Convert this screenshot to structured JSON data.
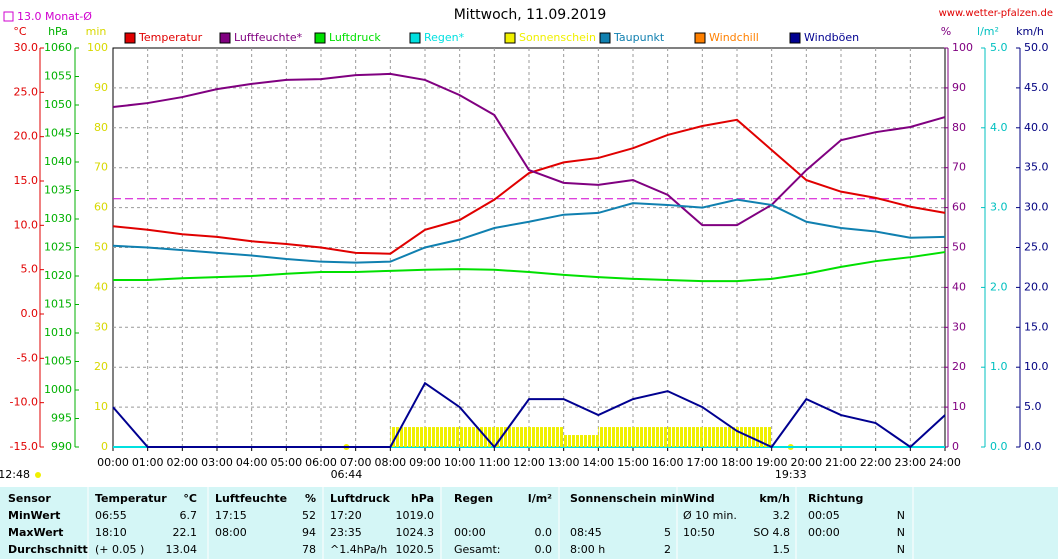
{
  "chart_data": {
    "type": "line",
    "title": "Mittwoch, 11.09.2019",
    "source": "www.wetter-pfalzen.de",
    "monthly_avg": {
      "label": "13.0 Monat-Ø",
      "value": 13.0,
      "color": "#d000d0"
    },
    "day_length": "12:48",
    "sunrise": "06:44",
    "sunset": "19:33",
    "grid": true,
    "x": [
      "00:00",
      "01:00",
      "02:00",
      "03:00",
      "04:00",
      "05:00",
      "06:00",
      "07:00",
      "08:00",
      "09:00",
      "10:00",
      "11:00",
      "12:00",
      "13:00",
      "14:00",
      "15:00",
      "16:00",
      "17:00",
      "18:00",
      "19:00",
      "20:00",
      "21:00",
      "22:00",
      "23:00",
      "24:00"
    ],
    "axes": [
      {
        "unit": "°C",
        "color": "#e00000",
        "lim": [
          -15,
          30
        ],
        "ticks": [
          {
            "value": -15,
            "label": "-15.0"
          },
          {
            "value": -10,
            "label": "-10.0"
          },
          {
            "value": -5,
            "label": "-5.0"
          },
          {
            "value": 0,
            "label": "0.0"
          },
          {
            "value": 5,
            "label": "5.0"
          },
          {
            "value": 10,
            "label": "10.0"
          },
          {
            "value": 15,
            "label": "15.0"
          },
          {
            "value": 20,
            "label": "20.0"
          },
          {
            "value": 25,
            "label": "25.0"
          },
          {
            "value": 30,
            "label": "30.0"
          }
        ]
      },
      {
        "unit": "hPa",
        "color": "#00b000",
        "lim": [
          990,
          1060
        ],
        "ticks": [
          990,
          995,
          1000,
          1005,
          1010,
          1015,
          1020,
          1025,
          1030,
          1035,
          1040,
          1045,
          1050,
          1055,
          1060
        ]
      },
      {
        "unit": "min",
        "color": "#d8d800",
        "lim": [
          0,
          100
        ],
        "ticks": [
          0,
          10,
          20,
          30,
          40,
          50,
          60,
          70,
          80,
          90,
          100
        ]
      },
      {
        "unit": "%",
        "color": "#800080",
        "lim": [
          0,
          100
        ],
        "ticks": [
          0,
          10,
          20,
          30,
          40,
          50,
          60,
          70,
          80,
          90,
          100
        ]
      },
      {
        "unit": "l/m²",
        "color": "#00c0c0",
        "lim": [
          0,
          5
        ],
        "ticks": [
          {
            "value": 0,
            "label": "0.0"
          },
          {
            "value": 1,
            "label": "1.0"
          },
          {
            "value": 2,
            "label": "2.0"
          },
          {
            "value": 3,
            "label": "3.0"
          },
          {
            "value": 4,
            "label": "4.0"
          },
          {
            "value": 5,
            "label": "5.0"
          }
        ]
      },
      {
        "unit": "km/h",
        "color": "#000080",
        "lim": [
          0,
          50
        ],
        "ticks": [
          {
            "value": 0,
            "label": "0.0"
          },
          {
            "value": 5,
            "label": "5.0"
          },
          {
            "value": 10,
            "label": "10.0"
          },
          {
            "value": 15,
            "label": "15.0"
          },
          {
            "value": 20,
            "label": "20.0"
          },
          {
            "value": 25,
            "label": "25.0"
          },
          {
            "value": 30,
            "label": "30.0"
          },
          {
            "value": 35,
            "label": "35.0"
          },
          {
            "value": 40,
            "label": "40.0"
          },
          {
            "value": 45,
            "label": "45.0"
          },
          {
            "value": 50,
            "label": "50.0"
          }
        ]
      }
    ],
    "series": [
      {
        "name": "Temperatur",
        "color": "#e00000",
        "axis": "°C",
        "values": [
          9.9,
          9.5,
          9.0,
          8.7,
          8.2,
          7.9,
          7.5,
          6.9,
          6.8,
          9.5,
          10.6,
          12.9,
          15.9,
          17.1,
          17.6,
          18.7,
          20.2,
          21.2,
          21.9,
          18.5,
          15.1,
          13.8,
          13.1,
          12.1,
          11.4
        ]
      },
      {
        "name": "Luftfeuchte*",
        "color": "#800080",
        "axis": "%",
        "values": [
          85.2,
          86.2,
          87.7,
          89.7,
          91,
          92,
          92.2,
          93.2,
          93.5,
          92,
          88.2,
          83.2,
          69.4,
          66.2,
          65.7,
          66.9,
          63.2,
          55.6,
          55.6,
          60.7,
          69.4,
          76.9,
          78.9,
          80.2,
          82.7
        ]
      },
      {
        "name": "Luftdruck",
        "color": "#00e000",
        "axis": "hPa",
        "values": [
          1019.3,
          1019.3,
          1019.6,
          1019.8,
          1020.0,
          1020.4,
          1020.7,
          1020.7,
          1020.9,
          1021.1,
          1021.2,
          1021.1,
          1020.7,
          1020.2,
          1019.8,
          1019.5,
          1019.3,
          1019.1,
          1019.1,
          1019.5,
          1020.4,
          1021.6,
          1022.6,
          1023.3,
          1024.2
        ]
      },
      {
        "name": "Regen*",
        "color": "#00e0e0",
        "axis": "l/m²",
        "values": [
          0,
          0,
          0,
          0,
          0,
          0,
          0,
          0,
          0,
          0,
          0,
          0,
          0,
          0,
          0,
          0,
          0,
          0,
          0,
          0,
          0,
          0,
          0,
          0,
          0
        ]
      },
      {
        "name": "Sonnenschein",
        "color": "#f0f000",
        "axis": "min",
        "bars": true,
        "values": [
          0,
          0,
          0,
          0,
          0,
          0,
          0,
          0,
          5,
          5,
          5,
          5,
          5,
          3,
          5,
          5,
          5,
          5,
          5,
          0,
          0,
          0,
          0,
          0,
          0
        ]
      },
      {
        "name": "Taupunkt",
        "color": "#1080b0",
        "axis": "°C",
        "values": [
          7.7,
          7.5,
          7.2,
          6.9,
          6.6,
          6.2,
          5.9,
          5.8,
          5.9,
          7.5,
          8.4,
          9.7,
          10.4,
          11.2,
          11.4,
          12.5,
          12.3,
          12.0,
          12.9,
          12.3,
          10.4,
          9.7,
          9.3,
          8.6,
          8.7
        ]
      },
      {
        "name": "Windchill",
        "color": "#ff8000",
        "axis": "°C"
      },
      {
        "name": "Windböen",
        "color": "#000090",
        "axis": "km/h",
        "values": [
          5,
          0,
          0,
          0,
          0,
          0,
          0,
          0,
          0,
          8,
          5,
          0,
          6,
          6,
          4,
          6,
          7,
          5,
          2,
          0,
          6,
          4,
          3,
          0,
          4
        ]
      }
    ]
  },
  "table": {
    "rows": [
      [
        "Sensor",
        "Temperatur",
        "°C",
        "Luftfeuchte",
        "%",
        "Luftdruck",
        "hPa",
        "Regen",
        "l/m²",
        "Sonnenschein min",
        null,
        "Wind",
        "km/h",
        "Richtung",
        null
      ],
      [
        "MinWert",
        "06:55",
        "6.7",
        "17:15",
        "52",
        "17:20",
        "1019.0",
        null,
        null,
        null,
        null,
        "Ø 10 min.",
        "3.2",
        "00:05",
        "N"
      ],
      [
        "MaxWert",
        "18:10",
        "22.1",
        "08:00",
        "94",
        "23:35",
        "1024.3",
        "00:00",
        "0.0",
        "08:45",
        "5",
        "10:50",
        "SO 4.8",
        "00:00",
        "N"
      ],
      [
        "Durchschnitt",
        "(+ 0.05 )",
        "13.04",
        null,
        "78",
        "^1.4hPa/h",
        "1020.5",
        "Gesamt:",
        "0.0",
        "8:00 h",
        "2",
        null,
        "1.5",
        null,
        "N"
      ]
    ]
  }
}
